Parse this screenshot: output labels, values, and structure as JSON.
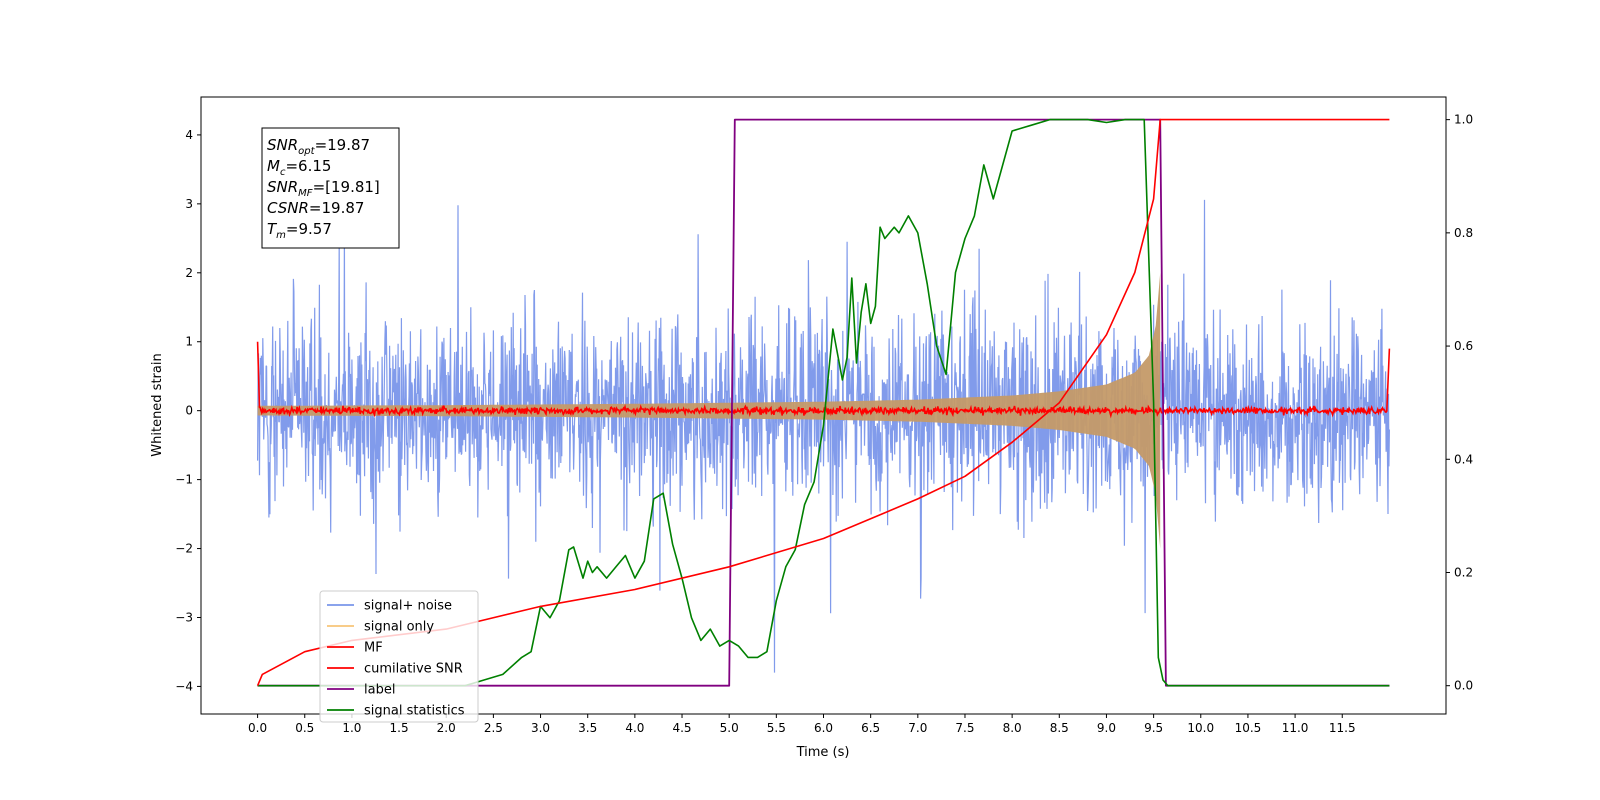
{
  "chart_data": {
    "type": "line",
    "xlabel": "Time (s)",
    "ylabel_left": "Whitened strain",
    "ylabel_right": "",
    "xlim": [
      -0.6,
      12.6
    ],
    "ylim_left": [
      -4.4,
      4.55
    ],
    "ylim_right": [
      -0.05,
      1.04
    ],
    "x_ticks": [
      "0.0",
      "0.5",
      "1.0",
      "1.5",
      "2.0",
      "2.5",
      "3.0",
      "3.5",
      "4.0",
      "4.5",
      "5.0",
      "5.5",
      "6.0",
      "6.5",
      "7.0",
      "7.5",
      "8.0",
      "8.5",
      "9.0",
      "9.5",
      "10.0",
      "10.5",
      "11.0",
      "11.5"
    ],
    "y_ticks_left": [
      "−4",
      "−3",
      "−2",
      "−1",
      "0",
      "1",
      "2",
      "3",
      "4"
    ],
    "y_ticks_right": [
      "0.0",
      "0.2",
      "0.4",
      "0.6",
      "0.8",
      "1.0"
    ],
    "grid": false,
    "legend_position": "lower-left",
    "annotation": {
      "lines": [
        {
          "base": "SNR",
          "sub": "opt",
          "value": "=19.87"
        },
        {
          "base": "M",
          "sub": "c",
          "value": "=6.15"
        },
        {
          "base": "SNR",
          "sub": "MF",
          "value": "=[19.81]"
        },
        {
          "base": "CSNR",
          "sub": "",
          "value": "=19.87"
        },
        {
          "base": "T",
          "sub": "m",
          "value": "=9.57"
        }
      ]
    },
    "series": [
      {
        "name": "signal+ noise",
        "color": "#7a96ea",
        "axis": "left",
        "description": "noise band roughly ±1.5 with peaks to ±3.8, from t=0 to t=12"
      },
      {
        "name": "signal only",
        "color": "#f7c478",
        "axis": "left",
        "envelope_x": [
          0.0,
          2.0,
          4.0,
          6.0,
          7.0,
          8.0,
          8.5,
          9.0,
          9.3,
          9.45,
          9.52,
          9.57
        ],
        "envelope_y": [
          0.07,
          0.08,
          0.1,
          0.13,
          0.16,
          0.22,
          0.28,
          0.38,
          0.55,
          0.8,
          1.2,
          2.0
        ]
      },
      {
        "name": "MF",
        "color": "#ff0000",
        "axis": "left",
        "description": "flat near 0 with small ripple, spikes to 1.0 and 0.9 at the edges"
      },
      {
        "name": "cumilative SNR",
        "color": "#ff0000",
        "axis": "right",
        "x": [
          0.0,
          0.05,
          0.5,
          1.0,
          2.0,
          3.0,
          4.0,
          5.0,
          6.0,
          7.0,
          7.5,
          8.0,
          8.5,
          9.0,
          9.3,
          9.5,
          9.57,
          12.0
        ],
        "y": [
          0.0,
          0.02,
          0.06,
          0.08,
          0.1,
          0.14,
          0.17,
          0.21,
          0.26,
          0.33,
          0.37,
          0.43,
          0.5,
          0.62,
          0.73,
          0.86,
          1.0,
          1.0
        ]
      },
      {
        "name": "label",
        "color": "#800080",
        "axis": "right",
        "x": [
          0.0,
          5.0,
          5.06,
          9.57,
          9.63,
          12.0
        ],
        "y": [
          0.0,
          0.0,
          1.0,
          1.0,
          0.0,
          0.0
        ]
      },
      {
        "name": "signal statistics",
        "color": "#008000",
        "axis": "right",
        "x": [
          0.0,
          0.5,
          1.0,
          1.5,
          2.0,
          2.2,
          2.4,
          2.6,
          2.8,
          2.9,
          3.0,
          3.1,
          3.2,
          3.3,
          3.35,
          3.45,
          3.5,
          3.55,
          3.6,
          3.7,
          3.8,
          3.9,
          4.0,
          4.1,
          4.2,
          4.3,
          4.4,
          4.5,
          4.6,
          4.7,
          4.8,
          4.9,
          5.0,
          5.1,
          5.2,
          5.3,
          5.4,
          5.5,
          5.6,
          5.7,
          5.8,
          5.9,
          6.0,
          6.1,
          6.2,
          6.25,
          6.3,
          6.35,
          6.4,
          6.45,
          6.5,
          6.55,
          6.6,
          6.65,
          6.7,
          6.75,
          6.8,
          6.9,
          7.0,
          7.1,
          7.2,
          7.3,
          7.4,
          7.5,
          7.6,
          7.7,
          7.8,
          8.0,
          8.2,
          8.4,
          8.6,
          8.8,
          9.0,
          9.2,
          9.4,
          9.5,
          9.55,
          9.6,
          9.65,
          12.0
        ],
        "y": [
          0.0,
          0.0,
          0.0,
          0.0,
          0.0,
          0.0,
          0.01,
          0.02,
          0.05,
          0.06,
          0.14,
          0.12,
          0.15,
          0.24,
          0.245,
          0.19,
          0.22,
          0.2,
          0.21,
          0.19,
          0.21,
          0.23,
          0.19,
          0.22,
          0.33,
          0.34,
          0.25,
          0.19,
          0.12,
          0.08,
          0.1,
          0.07,
          0.08,
          0.07,
          0.05,
          0.05,
          0.06,
          0.15,
          0.21,
          0.24,
          0.32,
          0.36,
          0.46,
          0.63,
          0.54,
          0.58,
          0.72,
          0.57,
          0.66,
          0.71,
          0.64,
          0.67,
          0.81,
          0.79,
          0.8,
          0.81,
          0.8,
          0.83,
          0.8,
          0.71,
          0.6,
          0.55,
          0.73,
          0.79,
          0.83,
          0.92,
          0.86,
          0.98,
          0.99,
          1.0,
          1.0,
          1.0,
          0.995,
          1.0,
          1.0,
          0.5,
          0.05,
          0.01,
          0.0,
          0.0
        ]
      }
    ]
  }
}
